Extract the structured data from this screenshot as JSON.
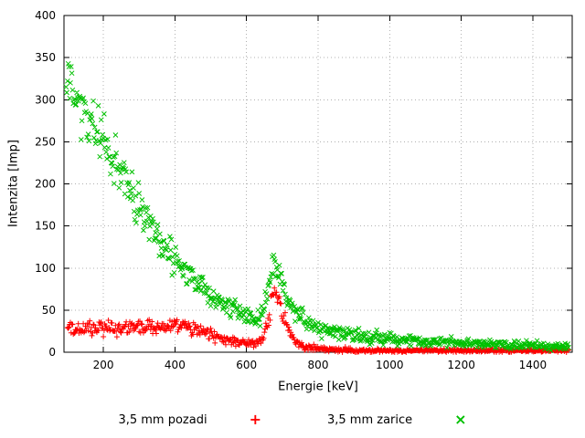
{
  "window": {
    "background": "#ffffff"
  },
  "chart_data": {
    "type": "scatter",
    "title": "",
    "xlabel": "Energie [keV]",
    "ylabel": "Intenzita [Imp]",
    "xlim": [
      90,
      1510
    ],
    "ylim": [
      0,
      400
    ],
    "xticks": [
      200,
      400,
      600,
      800,
      1000,
      1200,
      1400
    ],
    "yticks": [
      0,
      50,
      100,
      150,
      200,
      250,
      300,
      350,
      400
    ],
    "grid": true,
    "grid_color": "#b0b0b0",
    "legend_position": "bottom-center",
    "series": [
      {
        "name": "3,5 mm pozadi",
        "marker": "plus",
        "color": "#ff0000",
        "seed": 12345,
        "x_start": 100,
        "x_end": 1500,
        "x_step": 2,
        "noise_scale": 1.6,
        "anchors": [
          [
            100,
            27
          ],
          [
            140,
            27
          ],
          [
            180,
            28
          ],
          [
            220,
            29
          ],
          [
            260,
            29
          ],
          [
            300,
            29
          ],
          [
            340,
            30
          ],
          [
            380,
            30
          ],
          [
            410,
            31
          ],
          [
            440,
            29
          ],
          [
            470,
            25
          ],
          [
            500,
            21
          ],
          [
            530,
            16
          ],
          [
            560,
            13
          ],
          [
            590,
            11
          ],
          [
            615,
            10
          ],
          [
            632,
            12
          ],
          [
            645,
            17
          ],
          [
            655,
            27
          ],
          [
            663,
            42
          ],
          [
            670,
            60
          ],
          [
            676,
            70
          ],
          [
            682,
            72
          ],
          [
            688,
            66
          ],
          [
            694,
            57
          ],
          [
            700,
            47
          ],
          [
            708,
            36
          ],
          [
            716,
            27
          ],
          [
            725,
            20
          ],
          [
            735,
            15
          ],
          [
            748,
            10
          ],
          [
            762,
            7
          ],
          [
            780,
            5
          ],
          [
            800,
            4
          ],
          [
            830,
            3
          ],
          [
            870,
            3
          ],
          [
            920,
            2
          ],
          [
            1000,
            2
          ],
          [
            1100,
            2
          ],
          [
            1200,
            2
          ],
          [
            1300,
            2
          ],
          [
            1400,
            2
          ],
          [
            1500,
            2
          ]
        ]
      },
      {
        "name": "3,5 mm zarice",
        "marker": "cross",
        "color": "#00c000",
        "seed": 67890,
        "x_start": 96,
        "x_end": 1500,
        "x_step": 2,
        "noise_scale": 1.8,
        "anchors": [
          [
            96,
            320
          ],
          [
            110,
            318
          ],
          [
            125,
            305
          ],
          [
            140,
            292
          ],
          [
            160,
            278
          ],
          [
            180,
            265
          ],
          [
            200,
            252
          ],
          [
            220,
            238
          ],
          [
            240,
            222
          ],
          [
            260,
            205
          ],
          [
            280,
            188
          ],
          [
            300,
            170
          ],
          [
            320,
            155
          ],
          [
            340,
            142
          ],
          [
            360,
            130
          ],
          [
            380,
            120
          ],
          [
            400,
            110
          ],
          [
            420,
            101
          ],
          [
            440,
            93
          ],
          [
            460,
            85
          ],
          [
            480,
            77
          ],
          [
            500,
            70
          ],
          [
            520,
            63
          ],
          [
            540,
            57
          ],
          [
            560,
            51
          ],
          [
            580,
            46
          ],
          [
            600,
            42
          ],
          [
            615,
            39
          ],
          [
            630,
            40
          ],
          [
            645,
            50
          ],
          [
            655,
            65
          ],
          [
            665,
            85
          ],
          [
            672,
            100
          ],
          [
            680,
            110
          ],
          [
            687,
            103
          ],
          [
            695,
            90
          ],
          [
            705,
            75
          ],
          [
            715,
            62
          ],
          [
            725,
            53
          ],
          [
            740,
            45
          ],
          [
            755,
            40
          ],
          [
            770,
            35
          ],
          [
            790,
            31
          ],
          [
            810,
            28
          ],
          [
            840,
            25
          ],
          [
            870,
            23
          ],
          [
            900,
            21
          ],
          [
            950,
            18
          ],
          [
            1000,
            16
          ],
          [
            1060,
            14
          ],
          [
            1120,
            12
          ],
          [
            1180,
            11
          ],
          [
            1250,
            10
          ],
          [
            1320,
            9
          ],
          [
            1400,
            8
          ],
          [
            1500,
            7
          ]
        ]
      }
    ]
  }
}
